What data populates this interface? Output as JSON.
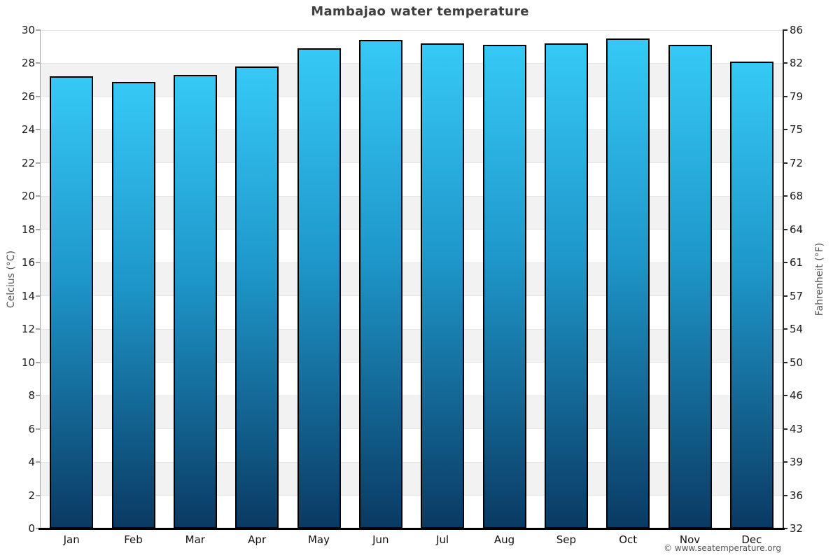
{
  "title": "Mambajao water temperature",
  "watermark": "© www.seatemperature.org",
  "chart_data": {
    "type": "bar",
    "title": "Mambajao water temperature",
    "categories": [
      "Jan",
      "Feb",
      "Mar",
      "Apr",
      "May",
      "Jun",
      "Jul",
      "Aug",
      "Sep",
      "Oct",
      "Nov",
      "Dec"
    ],
    "values": [
      27.2,
      26.9,
      27.3,
      27.8,
      28.9,
      29.4,
      29.2,
      29.1,
      29.2,
      29.5,
      29.1,
      28.1
    ],
    "unit": "°C",
    "ylabel_left": "Celcius (°C)",
    "ylabel_right": "Fahrenheit (°F)",
    "ylim": [
      0,
      30
    ],
    "celsius_ticks": [
      0,
      2,
      4,
      6,
      8,
      10,
      12,
      14,
      16,
      18,
      20,
      22,
      24,
      26,
      28,
      30
    ],
    "fahrenheit_tick_labels": [
      "32",
      "36",
      "39",
      "43",
      "46",
      "50",
      "54",
      "57",
      "61",
      "64",
      "68",
      "72",
      "75",
      "79",
      "82",
      "86"
    ],
    "grid": "alternating-horizontal-bands",
    "legend": "none",
    "colors": {
      "bar_gradient_top": "#36c9f6",
      "bar_gradient_mid": "#1e96c9",
      "bar_gradient_bottom": "#0a3a63",
      "bar_border": "#000000",
      "band_light": "#ffffff",
      "band_dark": "#f2f2f2",
      "grid_line": "#e4e4e4",
      "axis_left": "#a6a6a6",
      "axis_right": "#2a2a2a",
      "axis_bottom": "#000000",
      "title_color": "#3f3f3f",
      "tick_label_color": "#1a1a1a",
      "axis_title_color": "#555555",
      "watermark_color": "#555555"
    }
  }
}
